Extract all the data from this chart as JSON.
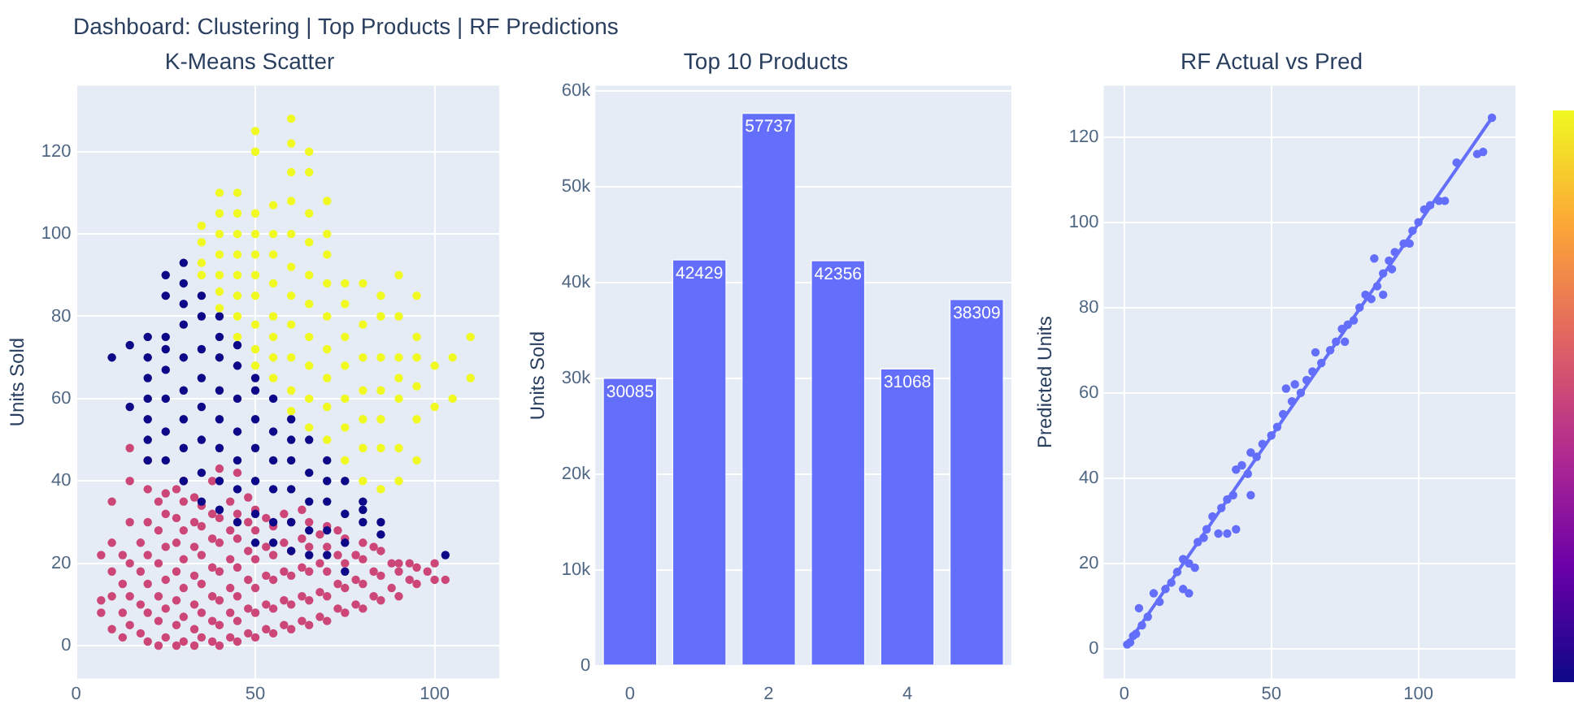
{
  "chart_data": [
    {
      "type": "scatter",
      "title": "K-Means Scatter",
      "ylabel": "Units Sold",
      "annotations": [
        "Dashboard: Clustering | Top Products | RF Predictions"
      ],
      "xlim": [
        0,
        118
      ],
      "ylim": [
        -8,
        136
      ],
      "xticks": [
        0,
        50,
        100
      ],
      "yticks": [
        0,
        20,
        40,
        60,
        80,
        100,
        120
      ],
      "grid": true,
      "legend": false,
      "marker": "circle",
      "series": [
        {
          "color": "#cc4778",
          "x": [
            7,
            7,
            7,
            10,
            10,
            10,
            10,
            10,
            13,
            13,
            13,
            13,
            15,
            15,
            15,
            15,
            15,
            15,
            18,
            18,
            18,
            18,
            20,
            20,
            20,
            20,
            20,
            20,
            20,
            23,
            23,
            23,
            23,
            23,
            23,
            25,
            25,
            25,
            25,
            25,
            25,
            28,
            28,
            28,
            28,
            28,
            28,
            28,
            30,
            30,
            30,
            30,
            30,
            30,
            30,
            33,
            33,
            33,
            33,
            33,
            33,
            33,
            35,
            35,
            35,
            35,
            35,
            35,
            38,
            38,
            38,
            38,
            38,
            38,
            38,
            40,
            40,
            40,
            40,
            40,
            40,
            40,
            43,
            43,
            43,
            43,
            43,
            43,
            45,
            45,
            45,
            45,
            45,
            45,
            45,
            48,
            48,
            48,
            48,
            48,
            48,
            50,
            50,
            50,
            50,
            50,
            50,
            53,
            53,
            53,
            53,
            53,
            55,
            55,
            55,
            55,
            55,
            58,
            58,
            58,
            58,
            58,
            60,
            60,
            60,
            60,
            60,
            63,
            63,
            63,
            63,
            63,
            65,
            65,
            65,
            65,
            65,
            68,
            68,
            68,
            68,
            70,
            70,
            70,
            70,
            70,
            73,
            73,
            73,
            73,
            75,
            75,
            75,
            75,
            78,
            78,
            78,
            80,
            80,
            80,
            80,
            83,
            83,
            83,
            85,
            85,
            85,
            88,
            88,
            90,
            90,
            90,
            93,
            93,
            95,
            95,
            98,
            100,
            100,
            103
          ],
          "values": [
            8,
            11,
            22,
            4,
            12,
            18,
            25,
            35,
            2,
            8,
            15,
            22,
            5,
            12,
            20,
            30,
            40,
            48,
            3,
            10,
            18,
            25,
            1,
            8,
            15,
            22,
            30,
            38,
            45,
            0,
            6,
            12,
            20,
            28,
            35,
            2,
            9,
            16,
            24,
            32,
            37,
            0,
            5,
            11,
            18,
            25,
            31,
            38,
            1,
            7,
            14,
            21,
            28,
            35,
            40,
            0,
            4,
            10,
            17,
            24,
            30,
            36,
            2,
            8,
            15,
            22,
            29,
            34,
            1,
            6,
            12,
            19,
            26,
            32,
            40,
            0,
            5,
            11,
            18,
            25,
            31,
            43,
            2,
            8,
            14,
            21,
            28,
            35,
            1,
            6,
            12,
            19,
            26,
            32,
            42,
            3,
            9,
            16,
            23,
            30,
            36,
            2,
            8,
            14,
            21,
            28,
            33,
            4,
            10,
            17,
            24,
            31,
            3,
            9,
            16,
            22,
            29,
            5,
            11,
            18,
            25,
            32,
            4,
            10,
            17,
            23,
            30,
            6,
            12,
            19,
            26,
            33,
            5,
            11,
            18,
            24,
            30,
            7,
            13,
            20,
            27,
            6,
            12,
            18,
            24,
            29,
            9,
            15,
            22,
            28,
            8,
            14,
            20,
            26,
            10,
            16,
            22,
            9,
            15,
            21,
            25,
            12,
            18,
            24,
            11,
            17,
            23,
            14,
            20,
            12,
            18,
            20,
            16,
            20,
            15,
            19,
            18,
            16,
            20,
            16
          ]
        },
        {
          "color": "#0d0887",
          "x": [
            10,
            15,
            15,
            20,
            20,
            20,
            20,
            20,
            20,
            20,
            25,
            25,
            25,
            25,
            25,
            25,
            25,
            25,
            30,
            30,
            30,
            30,
            30,
            30,
            30,
            30,
            30,
            35,
            35,
            35,
            35,
            35,
            35,
            35,
            35,
            40,
            40,
            40,
            40,
            40,
            40,
            40,
            40,
            45,
            45,
            45,
            45,
            45,
            45,
            45,
            50,
            50,
            50,
            50,
            50,
            50,
            50,
            55,
            55,
            55,
            55,
            55,
            55,
            60,
            60,
            60,
            60,
            60,
            60,
            65,
            65,
            65,
            65,
            65,
            70,
            70,
            70,
            70,
            70,
            75,
            75,
            75,
            75,
            80,
            80,
            80,
            85,
            85,
            103
          ],
          "values": [
            70,
            58,
            73,
            45,
            50,
            55,
            60,
            65,
            70,
            75,
            45,
            52,
            60,
            67,
            72,
            75,
            85,
            90,
            40,
            48,
            55,
            62,
            70,
            78,
            83,
            88,
            93,
            35,
            42,
            50,
            58,
            65,
            72,
            80,
            85,
            33,
            40,
            48,
            55,
            62,
            70,
            75,
            80,
            30,
            38,
            45,
            52,
            60,
            68,
            73,
            25,
            32,
            40,
            48,
            55,
            62,
            65,
            25,
            30,
            38,
            45,
            52,
            60,
            23,
            30,
            38,
            45,
            50,
            55,
            22,
            28,
            35,
            42,
            50,
            22,
            28,
            35,
            40,
            45,
            18,
            25,
            32,
            40,
            30,
            33,
            35,
            27,
            30,
            22
          ]
        },
        {
          "color": "#f0f921",
          "x": [
            35,
            35,
            35,
            35,
            40,
            40,
            40,
            40,
            40,
            40,
            40,
            45,
            45,
            45,
            45,
            45,
            45,
            45,
            45,
            50,
            50,
            50,
            50,
            50,
            50,
            50,
            50,
            50,
            50,
            55,
            55,
            55,
            55,
            55,
            55,
            55,
            55,
            60,
            60,
            60,
            60,
            60,
            60,
            60,
            60,
            60,
            60,
            60,
            65,
            65,
            65,
            65,
            65,
            65,
            65,
            65,
            65,
            65,
            70,
            70,
            70,
            70,
            70,
            70,
            70,
            70,
            70,
            75,
            75,
            75,
            75,
            75,
            75,
            75,
            80,
            80,
            80,
            80,
            80,
            80,
            80,
            85,
            85,
            85,
            85,
            85,
            85,
            85,
            90,
            90,
            90,
            90,
            90,
            90,
            90,
            95,
            95,
            95,
            95,
            95,
            95,
            100,
            100,
            105,
            105,
            110,
            110
          ],
          "values": [
            90,
            93,
            98,
            102,
            82,
            86,
            90,
            95,
            100,
            105,
            110,
            75,
            80,
            85,
            90,
            95,
            100,
            105,
            110,
            68,
            72,
            78,
            85,
            90,
            95,
            100,
            105,
            120,
            125,
            65,
            70,
            75,
            80,
            88,
            95,
            100,
            107,
            57,
            62,
            70,
            78,
            85,
            92,
            100,
            108,
            115,
            122,
            128,
            53,
            60,
            68,
            75,
            83,
            90,
            98,
            105,
            115,
            120,
            50,
            58,
            65,
            72,
            80,
            88,
            95,
            100,
            108,
            45,
            53,
            60,
            68,
            75,
            83,
            88,
            40,
            48,
            55,
            62,
            70,
            78,
            88,
            38,
            48,
            55,
            62,
            70,
            80,
            85,
            40,
            48,
            60,
            65,
            70,
            80,
            90,
            45,
            55,
            63,
            70,
            75,
            85,
            58,
            68,
            60,
            70,
            65,
            75
          ]
        }
      ]
    },
    {
      "type": "bar",
      "title": "Top 10 Products",
      "ylabel": "Units Sold",
      "categories": [
        "0",
        null,
        "2",
        null,
        "4",
        null
      ],
      "values": [
        30085,
        42429,
        57737,
        42356,
        31068,
        38309
      ],
      "color": "#636efa",
      "data_labels": true,
      "ylim": [
        0,
        60500
      ],
      "yticks": [
        0,
        {
          "value": 10000,
          "label": "10k"
        },
        {
          "value": 20000,
          "label": "20k"
        },
        {
          "value": 30000,
          "label": "30k"
        },
        {
          "value": 40000,
          "label": "40k"
        },
        {
          "value": 50000,
          "label": "50k"
        },
        {
          "value": 60000,
          "label": "60k"
        }
      ],
      "grid": "y",
      "legend": false
    },
    {
      "type": "scatter",
      "title": "RF Actual vs Pred",
      "ylabel": "Predicted Units",
      "xlim": [
        -7,
        133
      ],
      "ylim": [
        -7,
        132
      ],
      "xticks": [
        0,
        50,
        100
      ],
      "yticks": [
        0,
        20,
        40,
        60,
        80,
        100,
        120
      ],
      "grid": true,
      "legend": false,
      "series": [
        {
          "color": "#636efa",
          "marker": "circle",
          "x": [
            1,
            2,
            3,
            4,
            5,
            6,
            8,
            10,
            12,
            14,
            16,
            18,
            20,
            20,
            22,
            22,
            24,
            25,
            27,
            28,
            30,
            32,
            33,
            35,
            35,
            37,
            38,
            38,
            40,
            42,
            43,
            43,
            45,
            47,
            50,
            52,
            54,
            55,
            57,
            58,
            60,
            62,
            64,
            65,
            67,
            70,
            72,
            74,
            75,
            76,
            78,
            80,
            82,
            84,
            85,
            86,
            88,
            88,
            90,
            91,
            92,
            95,
            97,
            98,
            100,
            102,
            104,
            107,
            109,
            113,
            120,
            122,
            125
          ],
          "values": [
            1,
            1.5,
            3,
            3.5,
            9.5,
            5.5,
            7.5,
            13,
            11,
            14,
            15.5,
            18,
            21,
            14,
            13,
            20,
            19,
            25,
            26,
            28,
            31,
            27,
            33,
            27,
            35,
            36,
            28,
            42,
            43,
            41,
            36,
            46,
            45,
            48,
            50,
            52,
            55,
            61,
            58,
            62,
            60,
            63,
            65,
            69.5,
            67,
            70,
            72,
            75,
            72,
            76,
            77,
            80,
            83,
            82,
            91.5,
            85,
            88,
            83,
            91,
            89,
            93,
            95,
            95,
            98,
            100,
            103,
            104,
            105,
            105,
            114,
            116,
            116.5,
            124.5
          ]
        },
        {
          "type": "line",
          "marker": "none",
          "color": "#636efa",
          "x": [
            1,
            125
          ],
          "values": [
            1,
            124.5
          ]
        }
      ]
    }
  ]
}
